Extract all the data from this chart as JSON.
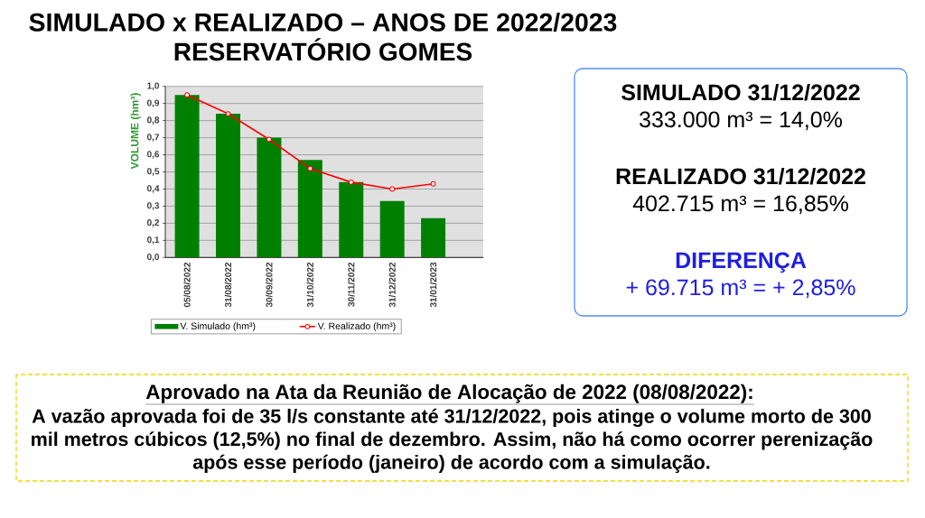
{
  "chart_data": {
    "type": "bar",
    "title": "SIMULADO x REALIZADO – ANOS DE 2022/2023",
    "subtitle": "RESERVATÓRIO GOMES",
    "ylabel": "VOLUME (hm³)",
    "categories": [
      "05/08/2022",
      "31/08/2022",
      "30/09/2022",
      "31/10/2022",
      "30/11/2022",
      "31/12/2022",
      "31/01/2023"
    ],
    "series": [
      {
        "name": "V. Simulado (hm³)",
        "color": "#008000",
        "values": [
          0.95,
          0.84,
          0.7,
          0.57,
          0.44,
          0.33,
          0.23
        ]
      },
      {
        "name": "V. Realizado (hm³)",
        "type": "line",
        "color": "#ff0000",
        "values": [
          0.95,
          0.84,
          0.69,
          0.52,
          0.44,
          0.4,
          0.43
        ]
      }
    ],
    "marker": "circle",
    "ylim": [
      0,
      1
    ],
    "yticks": [
      {
        "value": 0,
        "label": "0,0"
      },
      {
        "value": 0.1,
        "label": "0,1"
      },
      {
        "value": 0.2,
        "label": "0,2"
      },
      {
        "value": 0.3,
        "label": "0,3"
      },
      {
        "value": 0.4,
        "label": "0,4"
      },
      {
        "value": 0.5,
        "label": "0,5"
      },
      {
        "value": 0.6,
        "label": "0,6"
      },
      {
        "value": 0.7,
        "label": "0,7"
      },
      {
        "value": 0.8,
        "label": "0,8"
      },
      {
        "value": 0.9,
        "label": "0,9"
      },
      {
        "value": 1,
        "label": "1,0"
      }
    ],
    "grid": "y",
    "legend": "bottom",
    "annotations": [
      "SIMULADO 31/12/2022",
      "333.000 m³ = 14,0%",
      "REALIZADO 31/12/2022",
      "402.715 m³ = 16,85%",
      "DIFERENÇA",
      "+ 69.715 m³ = + 2,85%",
      "Aprovado na Ata da Reunião de Alocação de 2022 (08/08/2022):",
      "A vazão aprovada foi de 35 l/s constante até 31/12/2022, pois atinge o volume morto de 300 mil metros cúbicos (12,5%) no final de dezembro. Assim, não há como ocorrer perenização após esse período (janeiro) de acordo com a simulação."
    ]
  }
}
